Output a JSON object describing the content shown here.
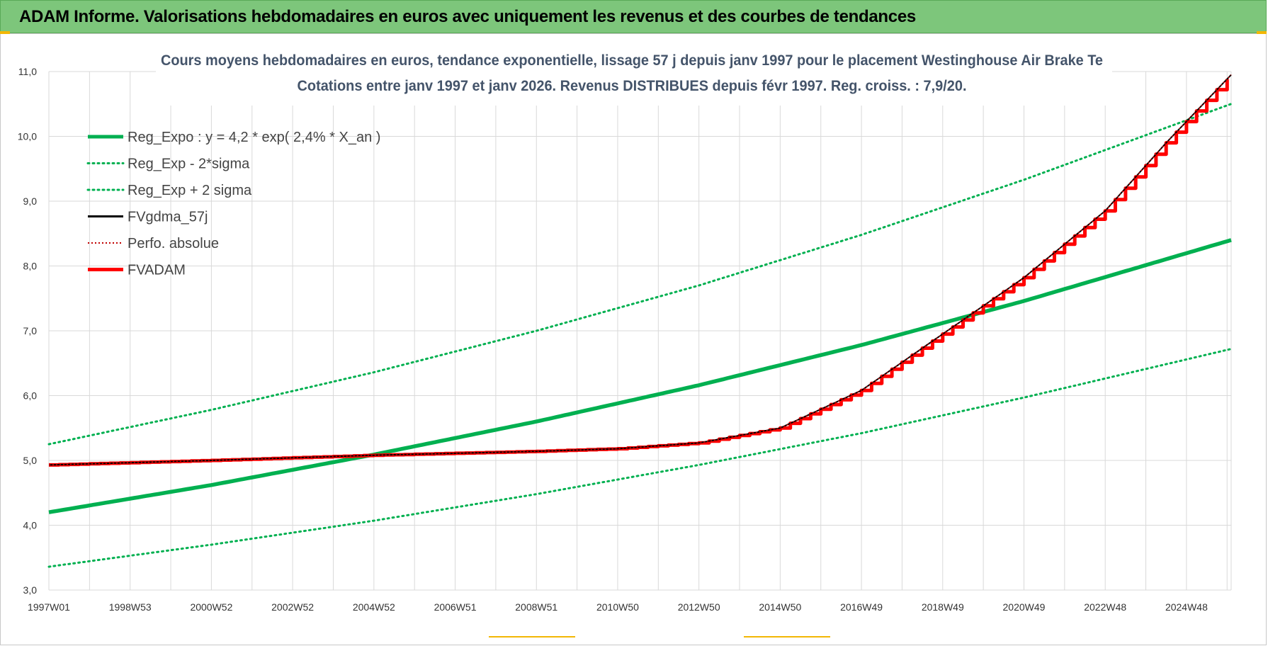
{
  "header": {
    "banner_title": "ADAM Informe. Valorisations hebdomadaires en euros avec uniquement les revenus et des courbes de tendances"
  },
  "colors": {
    "banner_bg": "#7dc67b",
    "trend_green": "#00b050",
    "fv_adam_red": "#ff0000",
    "perfo_red": "#c00000",
    "fvgdma_black": "#000000",
    "title_text": "#44546a"
  },
  "chart_data": {
    "type": "line",
    "title_line1": "Cours moyens hebdomadaires en euros, tendance exponentielle, lissage 57 j depuis janv 1997  pour le placement Westinghouse Air Brake Te",
    "title_line2": "Cotations entre janv 1997 et janv 2026. Revenus DISTRIBUES depuis févr 1997. Reg. croiss. : 7,9/20.",
    "x_tick_labels": [
      "1997W01",
      "1998W53",
      "2000W52",
      "2002W52",
      "2004W52",
      "2006W51",
      "2008W51",
      "2010W50",
      "2012W50",
      "2014W50",
      "2016W49",
      "2018W49",
      "2020W49",
      "2022W48",
      "2024W48"
    ],
    "x_tick_years": [
      1997.0,
      1999.0,
      2001.0,
      2003.0,
      2005.0,
      2007.0,
      2009.0,
      2011.0,
      2013.0,
      2015.0,
      2017.0,
      2019.0,
      2021.0,
      2023.0,
      2025.0
    ],
    "xlim": [
      1997.0,
      2026.1
    ],
    "ylim": [
      3.0,
      11.0
    ],
    "y_ticks": [
      "3,0",
      "4,0",
      "5,0",
      "6,0",
      "7,0",
      "8,0",
      "9,0",
      "10,0",
      "11,0"
    ],
    "grid": true,
    "legend_position": "top-left",
    "trend": {
      "a": 4.2,
      "growth_pct": 2.4,
      "sigma_factor_low": 0.8,
      "sigma_factor_high": 1.25
    },
    "series": [
      {
        "name": "Reg_Expo : y = 4,2 * exp( 2,4% *  X_an )",
        "style": "solid-thick",
        "color": "#00b050",
        "x": [
          1997,
          2001,
          2005,
          2009,
          2013,
          2017,
          2021,
          2026.1
        ],
        "values": [
          4.2,
          4.62,
          5.09,
          5.6,
          6.16,
          6.78,
          7.46,
          8.4
        ]
      },
      {
        "name": "Reg_Exp - 2*sigma",
        "style": "dotted",
        "color": "#00b050",
        "x": [
          1997,
          2001,
          2005,
          2009,
          2013,
          2017,
          2021,
          2026.1
        ],
        "values": [
          3.36,
          3.7,
          4.07,
          4.48,
          4.93,
          5.42,
          5.97,
          6.72
        ]
      },
      {
        "name": "Reg_Exp + 2 sigma",
        "style": "dotted",
        "color": "#00b050",
        "x": [
          1997,
          2001,
          2005,
          2009,
          2013,
          2017,
          2021,
          2026.1
        ],
        "values": [
          5.25,
          5.78,
          6.36,
          7.0,
          7.7,
          8.48,
          9.33,
          10.5
        ]
      },
      {
        "name": "FVgdma_57j",
        "style": "solid",
        "color": "#000000",
        "x": [
          1997,
          2001,
          2005,
          2009,
          2011,
          2013,
          2015,
          2017,
          2019,
          2021,
          2023,
          2024.5,
          2026.1
        ],
        "values": [
          4.93,
          5.0,
          5.08,
          5.14,
          5.18,
          5.27,
          5.5,
          6.08,
          6.95,
          7.82,
          8.85,
          9.9,
          10.95
        ]
      },
      {
        "name": "Perfo. absolue",
        "style": "dotted",
        "color": "#c00000",
        "x": [
          1997,
          2001,
          2005,
          2009,
          2011,
          2013,
          2015,
          2017,
          2019,
          2021,
          2023,
          2024.5,
          2026.1
        ],
        "values": [
          4.93,
          5.0,
          5.08,
          5.14,
          5.18,
          5.27,
          5.5,
          6.08,
          6.95,
          7.82,
          8.85,
          9.9,
          10.95
        ]
      },
      {
        "name": "FVADAM",
        "style": "solid-thick-steps",
        "color": "#ff0000",
        "x": [
          1997,
          2001,
          2005,
          2009,
          2011,
          2013,
          2015,
          2017,
          2019,
          2021,
          2023,
          2024.5,
          2026.1
        ],
        "values": [
          4.93,
          5.0,
          5.08,
          5.14,
          5.18,
          5.27,
          5.5,
          6.08,
          6.95,
          7.82,
          8.85,
          9.9,
          10.95
        ]
      }
    ]
  }
}
